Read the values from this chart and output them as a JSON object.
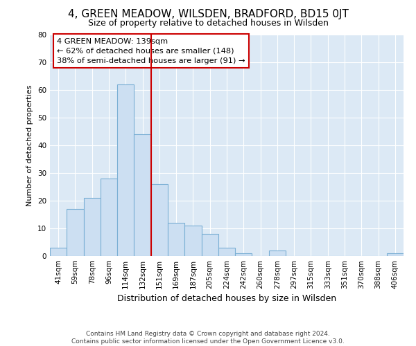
{
  "title": "4, GREEN MEADOW, WILSDEN, BRADFORD, BD15 0JT",
  "subtitle": "Size of property relative to detached houses in Wilsden",
  "xlabel": "Distribution of detached houses by size in Wilsden",
  "ylabel": "Number of detached properties",
  "categories": [
    "41sqm",
    "59sqm",
    "78sqm",
    "96sqm",
    "114sqm",
    "132sqm",
    "151sqm",
    "169sqm",
    "187sqm",
    "205sqm",
    "224sqm",
    "242sqm",
    "260sqm",
    "278sqm",
    "297sqm",
    "315sqm",
    "333sqm",
    "351sqm",
    "370sqm",
    "388sqm",
    "406sqm"
  ],
  "values": [
    3,
    17,
    21,
    28,
    62,
    44,
    26,
    12,
    11,
    8,
    3,
    1,
    0,
    2,
    0,
    0,
    0,
    0,
    0,
    0,
    1
  ],
  "bar_color": "#ccdff2",
  "bar_edge_color": "#7aafd4",
  "vline_x_index": 5,
  "vline_color": "#cc0000",
  "annotation_line1": "4 GREEN MEADOW: 139sqm",
  "annotation_line2": "← 62% of detached houses are smaller (148)",
  "annotation_line3": "38% of semi-detached houses are larger (91) →",
  "annotation_box_facecolor": "#ffffff",
  "annotation_box_edgecolor": "#cc0000",
  "ylim": [
    0,
    80
  ],
  "yticks": [
    0,
    10,
    20,
    30,
    40,
    50,
    60,
    70,
    80
  ],
  "fig_background": "#ffffff",
  "plot_background": "#dce9f5",
  "grid_color": "#ffffff",
  "title_fontsize": 11,
  "subtitle_fontsize": 9,
  "ylabel_fontsize": 8,
  "xlabel_fontsize": 9,
  "tick_fontsize": 7.5,
  "footer_line1": "Contains HM Land Registry data © Crown copyright and database right 2024.",
  "footer_line2": "Contains public sector information licensed under the Open Government Licence v3.0."
}
